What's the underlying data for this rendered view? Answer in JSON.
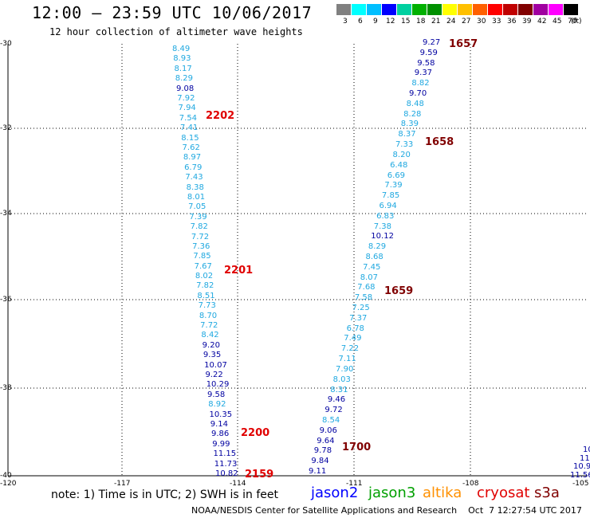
{
  "header": {
    "title": "12:00 – 23:59 UTC 10/06/2017",
    "subtitle": "12 hour collection of altimeter wave heights"
  },
  "legend": {
    "unit": "(ft)",
    "items": [
      {
        "label": "3",
        "color": "#808080"
      },
      {
        "label": "6",
        "color": "#00ffff"
      },
      {
        "label": "9",
        "color": "#00bfff"
      },
      {
        "label": "12",
        "color": "#0000ff"
      },
      {
        "label": "15",
        "color": "#00d0a0"
      },
      {
        "label": "18",
        "color": "#00b000"
      },
      {
        "label": "21",
        "color": "#009000"
      },
      {
        "label": "24",
        "color": "#ffff00"
      },
      {
        "label": "27",
        "color": "#ffc000"
      },
      {
        "label": "30",
        "color": "#ff6000"
      },
      {
        "label": "33",
        "color": "#ff0000"
      },
      {
        "label": "36",
        "color": "#c00000"
      },
      {
        "label": "39",
        "color": "#800000"
      },
      {
        "label": "42",
        "color": "#a000a0"
      },
      {
        "label": "45",
        "color": "#ff00ff"
      },
      {
        "label": "70",
        "color": "#000000"
      }
    ]
  },
  "map": {
    "lat_ticks": [
      "-30",
      "-32",
      "-34",
      "-36",
      "-38",
      "-40"
    ],
    "lon_ticks": [
      "-120",
      "-117",
      "-114",
      "-111",
      "-108",
      "-105"
    ]
  },
  "colors": {
    "light": "#1fa8e0",
    "dark": "#0000a0",
    "time_red": "#e00000",
    "time_dark": "#800000"
  },
  "track_west": {
    "heights": [
      "8.49",
      "8.93",
      "8.17",
      "8.29",
      "9.08",
      "7.92",
      "7.94",
      "7.54",
      "7.41",
      "8.15",
      "7.62",
      "8.97",
      "6.79",
      "7.43",
      "8.38",
      "8.01",
      "7.05",
      "7.39",
      "7.82",
      "7.72",
      "7.36",
      "7.85",
      "7.67",
      "8.02",
      "7.82",
      "8.51",
      "7.73",
      "8.70",
      "7.72",
      "8.42",
      "9.20",
      "9.35",
      "10.07",
      "9.22",
      "10.29",
      "9.58",
      "8.92",
      "10.35",
      "9.14",
      "9.86",
      "9.99",
      "11.15",
      "11.73",
      "10.82"
    ],
    "times": [
      "2202",
      "2201",
      "2200",
      "2159"
    ]
  },
  "track_east": {
    "heights": [
      "9.27",
      "9.59",
      "9.58",
      "9.37",
      "8.82",
      "9.70",
      "8.48",
      "8.28",
      "8.39",
      "8.37",
      "7.33",
      "8.20",
      "6.48",
      "6.69",
      "7.39",
      "7.85",
      "6.94",
      "6.83",
      "7.38",
      "10.12",
      "8.29",
      "8.68",
      "7.45",
      "8.07",
      "7.68",
      "7.58",
      "7.25",
      "7.37",
      "6.78",
      "7.49",
      "7.22",
      "7.11",
      "7.90",
      "8.03",
      "8.31",
      "9.46",
      "9.72",
      "8.54",
      "9.06",
      "9.64",
      "9.78",
      "9.84",
      "9.11"
    ],
    "times": [
      "1657",
      "1658",
      "1659",
      "1700"
    ]
  },
  "track_edge": {
    "heights": [
      "10",
      "11.",
      "10.9",
      "11.56"
    ]
  },
  "footer": {
    "note": "note: 1) Time is in UTC; 2) SWH is in feet",
    "satellites": [
      {
        "name": "jason2",
        "color": "#0000ff"
      },
      {
        "name": "jason3",
        "color": "#00a000"
      },
      {
        "name": "altika",
        "color": "#ff9000"
      },
      {
        "name": "cryosat",
        "color": "#e00000"
      },
      {
        "name": "s3a",
        "color": "#800000"
      }
    ],
    "credit": "NOAA/NESDIS Center for Satellite Applications and Research    Oct  7 12:27:54 UTC 2017"
  }
}
